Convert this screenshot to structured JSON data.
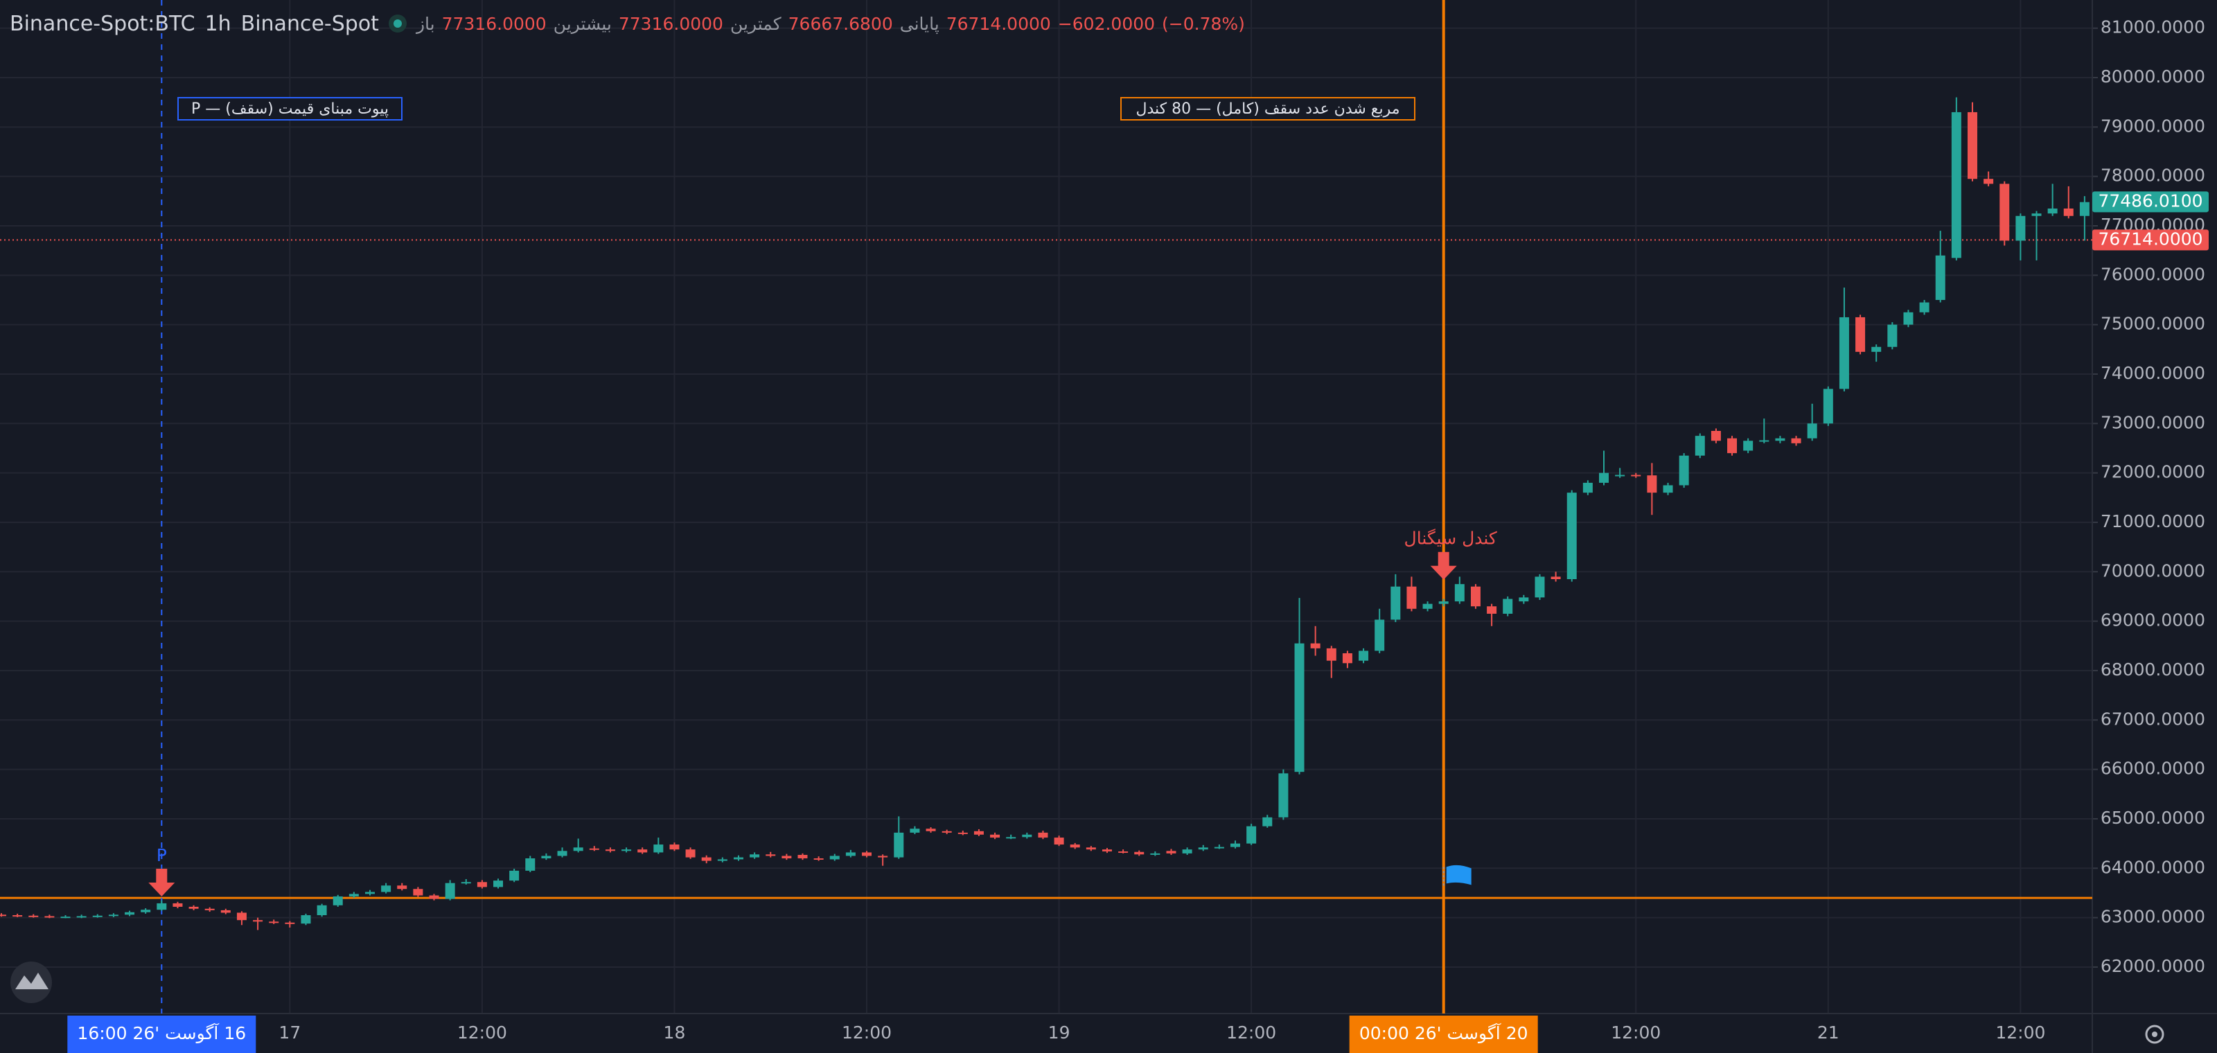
{
  "chart_data": {
    "type": "candlestick",
    "symbol": "Binance-Spot:BTC",
    "interval": "1h",
    "exchange": "Binance-Spot",
    "ohlc": [
      {
        "name": "باز",
        "value": 77316,
        "label": "77316.0000"
      },
      {
        "name": "بیشترین",
        "value": 77316,
        "label": "77316.0000"
      },
      {
        "name": "کمترین",
        "value": 76667.68,
        "label": "76667.6800"
      },
      {
        "name": "پایانی",
        "value": 76714,
        "label": "76714.0000"
      }
    ],
    "change": {
      "value": -602,
      "label": "−602.0000"
    },
    "change_pct": {
      "value": -0.78,
      "label": "(−0.78%)"
    },
    "up_color": "#26a69a",
    "down_color": "#ef5350",
    "grid": true,
    "categories": [
      null,
      null,
      null,
      null,
      null,
      null,
      null,
      null,
      null,
      null,
      "16 آگوست '26 16:00",
      null,
      null,
      null,
      null,
      null,
      null,
      null,
      "17",
      null,
      null,
      null,
      null,
      null,
      null,
      null,
      null,
      null,
      null,
      null,
      "12:00",
      null,
      null,
      null,
      null,
      null,
      null,
      null,
      null,
      null,
      null,
      null,
      "18",
      null,
      null,
      null,
      null,
      null,
      null,
      null,
      null,
      null,
      null,
      null,
      "12:00",
      null,
      null,
      null,
      null,
      null,
      null,
      null,
      null,
      null,
      null,
      null,
      "19",
      null,
      null,
      null,
      null,
      null,
      null,
      null,
      null,
      null,
      null,
      null,
      "12:00",
      null,
      null,
      null,
      null,
      null,
      null,
      null,
      null,
      null,
      null,
      null,
      "20 آگوست '26 00:00",
      null,
      null,
      null,
      null,
      null,
      null,
      null,
      null,
      null,
      null,
      null,
      "12:00",
      null,
      null,
      null,
      null,
      null,
      null,
      null,
      null,
      null,
      null,
      null,
      "21",
      null,
      null,
      null,
      null,
      null,
      null,
      null,
      null,
      null,
      null,
      null,
      "12:00",
      null,
      null,
      null,
      null
    ],
    "open": [
      63060,
      63050,
      63040,
      63030,
      63020,
      63020,
      63030,
      63040,
      63060,
      63110,
      63160,
      63290,
      63220,
      63180,
      63150,
      63100,
      62950,
      62920,
      62900,
      62880,
      63050,
      63250,
      63430,
      63480,
      63520,
      63650,
      63580,
      63450,
      63380,
      63700,
      63720,
      63620,
      63750,
      63950,
      64200,
      64250,
      64350,
      64400,
      64380,
      64350,
      64380,
      64320,
      64480,
      64380,
      64220,
      64150,
      64180,
      64220,
      64280,
      64250,
      64270,
      64200,
      64180,
      64250,
      64320,
      64250,
      64220,
      64720,
      64800,
      64750,
      64720,
      64750,
      64680,
      64620,
      64630,
      64720,
      64620,
      64480,
      64420,
      64380,
      64340,
      64330,
      64280,
      64350,
      64300,
      64380,
      64420,
      64430,
      64500,
      64850,
      65030,
      65950,
      68550,
      68450,
      68350,
      68200,
      68400,
      69030,
      69700,
      69250,
      69350,
      69400,
      69700,
      69300,
      69150,
      69400,
      69480,
      69900,
      69850,
      71600,
      71800,
      71950,
      71960,
      71950,
      71600,
      71750,
      72350,
      72850,
      72700,
      72450,
      72650,
      72650,
      72700,
      72700,
      73000,
      73700,
      75150,
      74450,
      74550,
      75000,
      75250,
      75500,
      76350,
      79300,
      77950,
      77850,
      76700,
      77200,
      77250,
      77350,
      77200
    ],
    "high": [
      63090,
      63080,
      63070,
      63060,
      63050,
      63060,
      63070,
      63090,
      63140,
      63190,
      63350,
      63320,
      63250,
      63210,
      63180,
      63130,
      63000,
      62960,
      62930,
      63080,
      63280,
      63460,
      63520,
      63560,
      63700,
      63700,
      63620,
      63480,
      63760,
      63780,
      63760,
      63790,
      63990,
      64250,
      64300,
      64420,
      64600,
      64450,
      64420,
      64420,
      64420,
      64620,
      64520,
      64420,
      64260,
      64220,
      64260,
      64320,
      64330,
      64290,
      64300,
      64240,
      64290,
      64370,
      64350,
      64280,
      65050,
      64850,
      64830,
      64780,
      64760,
      64790,
      64720,
      64680,
      64720,
      64760,
      64660,
      64510,
      64450,
      64410,
      64380,
      64360,
      64340,
      64390,
      64420,
      64470,
      64480,
      64560,
      64900,
      65080,
      66000,
      69470,
      68900,
      68500,
      68400,
      68450,
      69250,
      69950,
      69900,
      69400,
      69450,
      69900,
      69750,
      69350,
      69500,
      69530,
      69950,
      70000,
      71650,
      71850,
      72450,
      72100,
      72000,
      72200,
      71800,
      72400,
      72800,
      72900,
      72750,
      72700,
      73100,
      72750,
      72750,
      73400,
      73750,
      75750,
      75200,
      74600,
      75050,
      75300,
      75500,
      76900,
      79600,
      79500,
      78100,
      77900,
      77250,
      77300,
      77850,
      77800,
      77600
    ],
    "low": [
      63020,
      63010,
      63000,
      62990,
      62990,
      62990,
      63000,
      63010,
      63030,
      63080,
      63140,
      63190,
      63150,
      63120,
      63070,
      62850,
      62750,
      62870,
      62800,
      62850,
      63020,
      63220,
      63400,
      63450,
      63490,
      63550,
      63420,
      63350,
      63350,
      63670,
      63590,
      63590,
      63720,
      63920,
      64170,
      64220,
      64320,
      64350,
      64320,
      64320,
      64290,
      64290,
      64350,
      64190,
      64100,
      64120,
      64150,
      64190,
      64220,
      64170,
      64170,
      64150,
      64150,
      64220,
      64220,
      64050,
      64190,
      64690,
      64720,
      64690,
      64670,
      64650,
      64590,
      64590,
      64600,
      64590,
      64450,
      64390,
      64350,
      64310,
      64300,
      64250,
      64250,
      64270,
      64270,
      64350,
      64390,
      64400,
      64470,
      64820,
      64980,
      65900,
      68300,
      67850,
      68050,
      68150,
      68350,
      68980,
      69200,
      69200,
      69300,
      69350,
      69250,
      68900,
      69100,
      69350,
      69430,
      69800,
      69800,
      71550,
      71750,
      71900,
      71900,
      71150,
      71550,
      71700,
      72300,
      72600,
      72350,
      72400,
      72600,
      72600,
      72550,
      72650,
      72950,
      73650,
      74400,
      74250,
      74500,
      74950,
      75200,
      75450,
      76300,
      77900,
      77800,
      76600,
      76300,
      76300,
      77200,
      77150,
      76700
    ],
    "close": [
      63050,
      63040,
      63030,
      63020,
      63020,
      63030,
      63040,
      63060,
      63110,
      63160,
      63290,
      63220,
      63180,
      63150,
      63100,
      62950,
      62920,
      62900,
      62880,
      63050,
      63250,
      63430,
      63480,
      63520,
      63650,
      63580,
      63450,
      63380,
      63700,
      63720,
      63620,
      63750,
      63950,
      64200,
      64250,
      64350,
      64420,
      64380,
      64350,
      64380,
      64320,
      64480,
      64380,
      64220,
      64150,
      64180,
      64220,
      64280,
      64250,
      64200,
      64200,
      64180,
      64250,
      64320,
      64250,
      64220,
      64720,
      64800,
      64750,
      64720,
      64700,
      64680,
      64620,
      64630,
      64680,
      64620,
      64480,
      64420,
      64380,
      64340,
      64330,
      64280,
      64300,
      64300,
      64380,
      64420,
      64430,
      64500,
      64850,
      65030,
      65920,
      68550,
      68450,
      68200,
      68150,
      68400,
      69030,
      69700,
      69250,
      69350,
      69400,
      69750,
      69300,
      69150,
      69450,
      69480,
      69900,
      69850,
      71600,
      71800,
      72000,
      71960,
      71950,
      71600,
      71750,
      72350,
      72750,
      72650,
      72400,
      72650,
      72660,
      72700,
      72600,
      73000,
      73700,
      75150,
      74450,
      74550,
      75000,
      75250,
      75450,
      76400,
      79300,
      77950,
      77850,
      76700,
      77200,
      77250,
      77350,
      77200,
      77480
    ],
    "ylim": [
      61060,
      81570
    ],
    "yticks": [
      {
        "value": 62000,
        "label": "62000.0000"
      },
      {
        "value": 63000,
        "label": "63000.0000"
      },
      {
        "value": 64000,
        "label": "64000.0000"
      },
      {
        "value": 65000,
        "label": "65000.0000"
      },
      {
        "value": 66000,
        "label": "66000.0000"
      },
      {
        "value": 67000,
        "label": "67000.0000"
      },
      {
        "value": 68000,
        "label": "68000.0000"
      },
      {
        "value": 69000,
        "label": "69000.0000"
      },
      {
        "value": 70000,
        "label": "70000.0000"
      },
      {
        "value": 71000,
        "label": "71000.0000"
      },
      {
        "value": 72000,
        "label": "72000.0000"
      },
      {
        "value": 73000,
        "label": "73000.0000"
      },
      {
        "value": 74000,
        "label": "74000.0000"
      },
      {
        "value": 75000,
        "label": "75000.0000"
      },
      {
        "value": 76000,
        "label": "76000.0000"
      },
      {
        "value": 77000,
        "label": "77000.0000"
      },
      {
        "value": 78000,
        "label": "78000.0000"
      },
      {
        "value": 79000,
        "label": "79000.0000"
      },
      {
        "value": 80000,
        "label": "80000.0000"
      },
      {
        "value": 81000,
        "label": "81000.0000"
      }
    ],
    "price_labels": [
      {
        "value": 77486.01,
        "label": "77486.0100",
        "color": "#26a69a",
        "line": false
      },
      {
        "value": 76714,
        "label": "76714.0000",
        "color": "#ef5350",
        "line": true
      }
    ],
    "hlines": [
      {
        "value": 63400,
        "color": "#f57c00"
      }
    ],
    "vertical_lines": [
      {
        "x": 10,
        "color": "#2962ff",
        "dashed": true
      },
      {
        "x": 90,
        "color": "#f57c00",
        "dashed": false
      }
    ],
    "signals": [
      {
        "x": 10,
        "value": 63430,
        "label": "P",
        "color": "#ef5350",
        "label_color": "#2962ff"
      },
      {
        "x": 90,
        "value": 69840,
        "label": "کندل سیگنال",
        "color": "#ef5350",
        "label_color": "#ef5350"
      }
    ],
    "flag": {
      "x": 90,
      "value": 63830,
      "color": "#2196f3"
    },
    "annotations": [
      {
        "text": "P — پیوت مبنای قیمت (سقف)",
        "color": "#2962ff"
      },
      {
        "text": "مربع شدن عدد سقف (کامل) — 80 کندل",
        "color": "#f57c00"
      }
    ]
  }
}
